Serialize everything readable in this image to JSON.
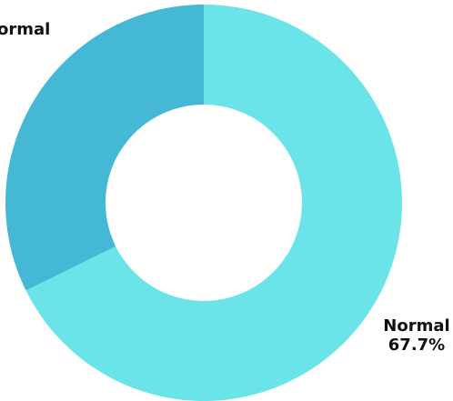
{
  "chart_data": {
    "type": "pie",
    "variant": "donut",
    "title": "",
    "slices": [
      {
        "label": "Normal",
        "value": 67.7,
        "value_label": "67.7%",
        "color": "#6ae4e8"
      },
      {
        "label": "Abnormal",
        "value": 32.3,
        "value_label": "",
        "color": "#45b8d6"
      }
    ],
    "slice_text": [
      {
        "lines": [
          "Normal",
          "67.7%"
        ]
      },
      {
        "lines": [
          "ormal"
        ]
      }
    ],
    "start_angle_deg": 0,
    "direction": "clockwise",
    "legend": "none"
  }
}
